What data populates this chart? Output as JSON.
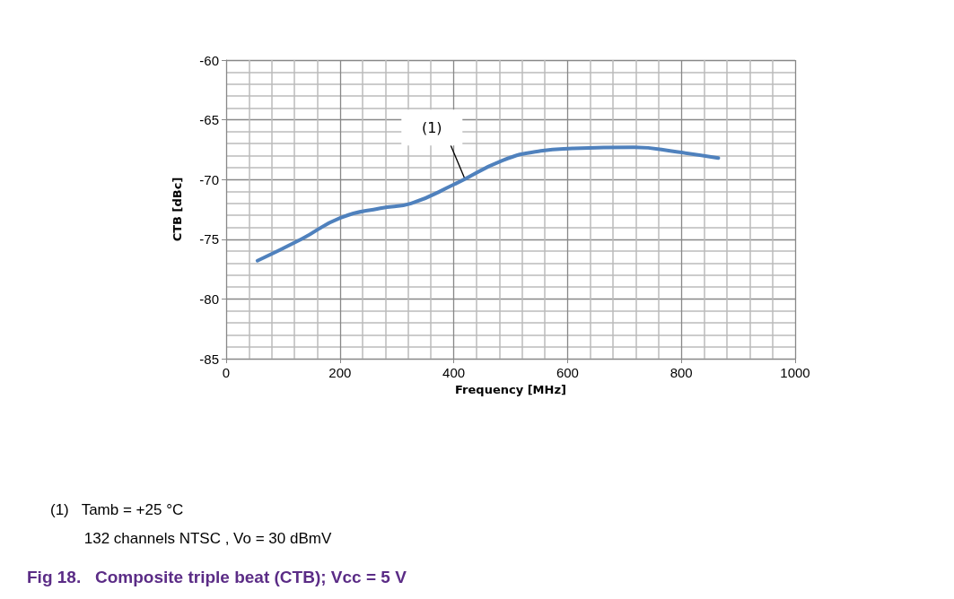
{
  "chart_data": {
    "type": "line",
    "title": "Fig 18.   Composite triple beat (CTB); Vcc = 5 V",
    "xlabel": "Frequency [MHz]",
    "ylabel": "CTB [dBc]",
    "x": [
      55,
      132,
      201,
      271,
      325,
      401,
      486,
      553,
      609,
      717,
      794,
      865
    ],
    "series": [
      {
        "color": "#4f81bd",
        "values": [
          -76.8,
          -75.0,
          -73.2,
          -72.4,
          -72.0,
          -70.4,
          -68.4,
          -67.6,
          -67.4,
          -67.3,
          -67.7,
          -68.2
        ]
      }
    ],
    "xlim": [
      0,
      1000
    ],
    "xticks": [
      0,
      200,
      400,
      600,
      800,
      1000
    ],
    "ylim": [
      -85,
      -60
    ],
    "yticks": [
      -85,
      -80,
      -75,
      -70,
      -65,
      -60
    ],
    "grid": true,
    "marker": "none",
    "line_style": "solid",
    "annotations": [
      {
        "text": "(1)",
        "x": 420,
        "y": -70.0
      },
      "(1)   Tamb = +25 °C",
      "        132 channels NTSC , Vo = 30 dBmV"
    ]
  }
}
